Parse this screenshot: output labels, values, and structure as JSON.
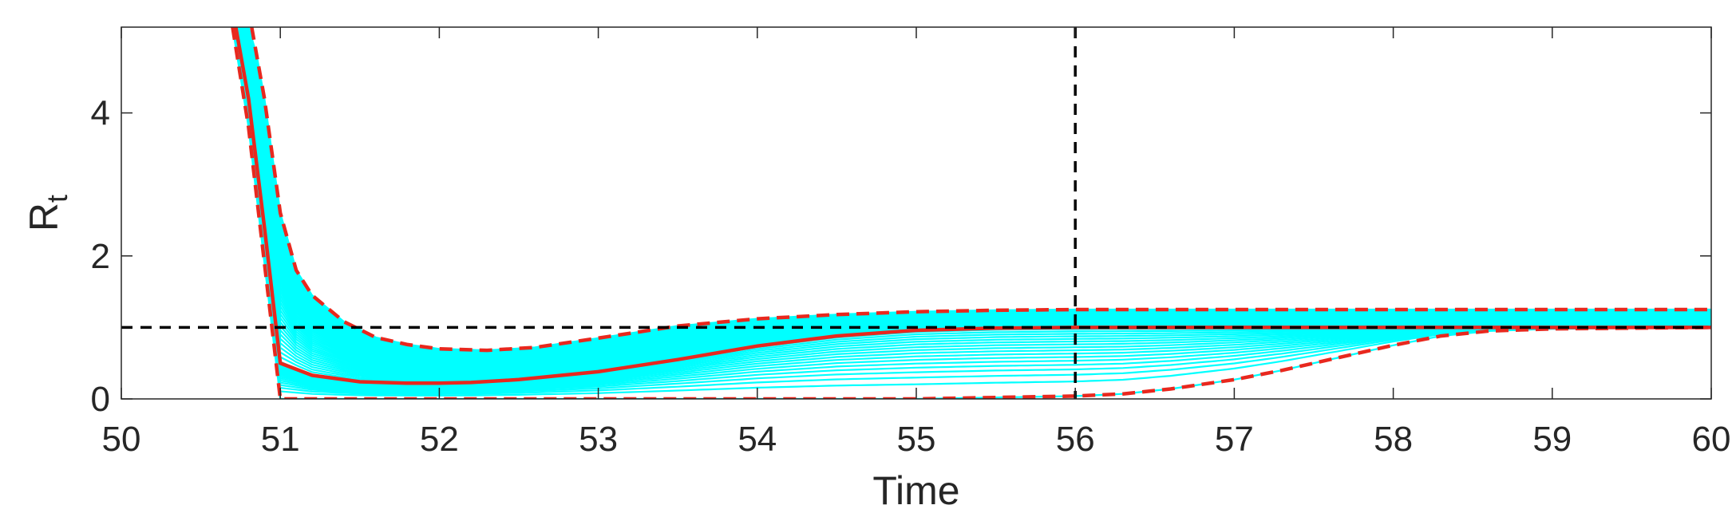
{
  "chart_data": {
    "type": "line",
    "xlabel": "Time",
    "ylabel_main": "R",
    "ylabel_sub": "t",
    "xlim": [
      50,
      60
    ],
    "ylim": [
      0,
      5.2
    ],
    "xticks": [
      "50",
      "51",
      "52",
      "53",
      "54",
      "55",
      "56",
      "57",
      "58",
      "59",
      "60"
    ],
    "yticks": [
      "0",
      "2",
      "4"
    ],
    "grid": false,
    "colors": {
      "ensemble": "#00ffff",
      "median": "#e8281e",
      "bounds": "#e8281e",
      "reference": "#000000"
    },
    "reference_lines": {
      "horizontal_y": 1,
      "vertical_x": 56
    },
    "series": [
      {
        "style": "solid",
        "x": [
          50.72,
          50.8,
          50.9,
          51.0,
          51.2,
          51.5,
          51.8,
          52.0,
          52.2,
          52.5,
          53.0,
          53.5,
          54.0,
          54.5,
          55.0,
          55.5,
          56.0,
          57.0,
          58.0,
          59.0,
          60.0
        ],
        "y": [
          5.2,
          4.2,
          2.4,
          0.5,
          0.33,
          0.24,
          0.22,
          0.22,
          0.23,
          0.27,
          0.38,
          0.55,
          0.74,
          0.88,
          0.96,
          0.99,
          1.0,
          1.0,
          1.0,
          1.0,
          1.0
        ]
      },
      {
        "style": "dashed",
        "x": [
          50.82,
          50.9,
          51.0,
          51.1,
          51.2,
          51.4,
          51.6,
          51.8,
          52.0,
          52.3,
          52.6,
          53.0,
          53.5,
          54.0,
          54.5,
          55.0,
          55.5,
          56.0,
          57.0,
          58.0,
          59.0,
          60.0
        ],
        "y": [
          5.2,
          4.2,
          2.6,
          1.8,
          1.45,
          1.08,
          0.86,
          0.76,
          0.7,
          0.68,
          0.72,
          0.85,
          1.02,
          1.12,
          1.18,
          1.22,
          1.24,
          1.25,
          1.25,
          1.25,
          1.25,
          1.25
        ]
      },
      {
        "style": "dashed",
        "x": [
          50.7,
          50.8,
          50.9,
          51.0,
          51.2,
          52.0,
          53.0,
          54.0,
          55.0,
          55.5,
          56.0,
          56.3,
          56.6,
          57.0,
          57.3,
          57.6,
          58.0,
          58.3,
          58.6,
          59.0,
          59.5,
          60.0
        ],
        "y": [
          5.2,
          3.8,
          1.9,
          0.0,
          0.0,
          0.0,
          0.0,
          0.0,
          0.0,
          0.02,
          0.04,
          0.07,
          0.14,
          0.27,
          0.4,
          0.55,
          0.75,
          0.88,
          0.95,
          0.98,
          0.99,
          1.0
        ]
      }
    ]
  }
}
